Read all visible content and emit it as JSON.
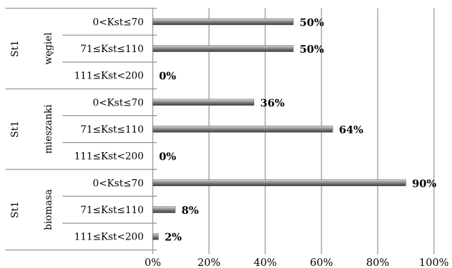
{
  "chart_data": {
    "type": "bar",
    "orientation": "horizontal",
    "xlim": [
      0,
      100
    ],
    "x_ticks": [
      "0%",
      "20%",
      "40%",
      "60%",
      "80%",
      "100%"
    ],
    "grid": "vertical",
    "groups": [
      {
        "outer_label": "St1",
        "label": "węgiel",
        "categories": [
          "0<Kst≤70",
          "71≤Kst≤110",
          "111≤Kst<200"
        ],
        "values": [
          50,
          50,
          0
        ],
        "value_labels": [
          "50%",
          "50%",
          "0%"
        ]
      },
      {
        "outer_label": "St1",
        "label": "mieszanki",
        "categories": [
          "0<Kst≤70",
          "71≤Kst≤110",
          "111≤Kst<200"
        ],
        "values": [
          36,
          64,
          0
        ],
        "value_labels": [
          "36%",
          "64%",
          "0%"
        ]
      },
      {
        "outer_label": "St1",
        "label": "biomasa",
        "categories": [
          "0<Kst≤70",
          "71≤Kst≤110",
          "111≤Kst<200"
        ],
        "values": [
          90,
          8,
          2
        ],
        "value_labels": [
          "90%",
          "8%",
          "2%"
        ]
      }
    ],
    "bar_color": "#8c8c8c"
  }
}
